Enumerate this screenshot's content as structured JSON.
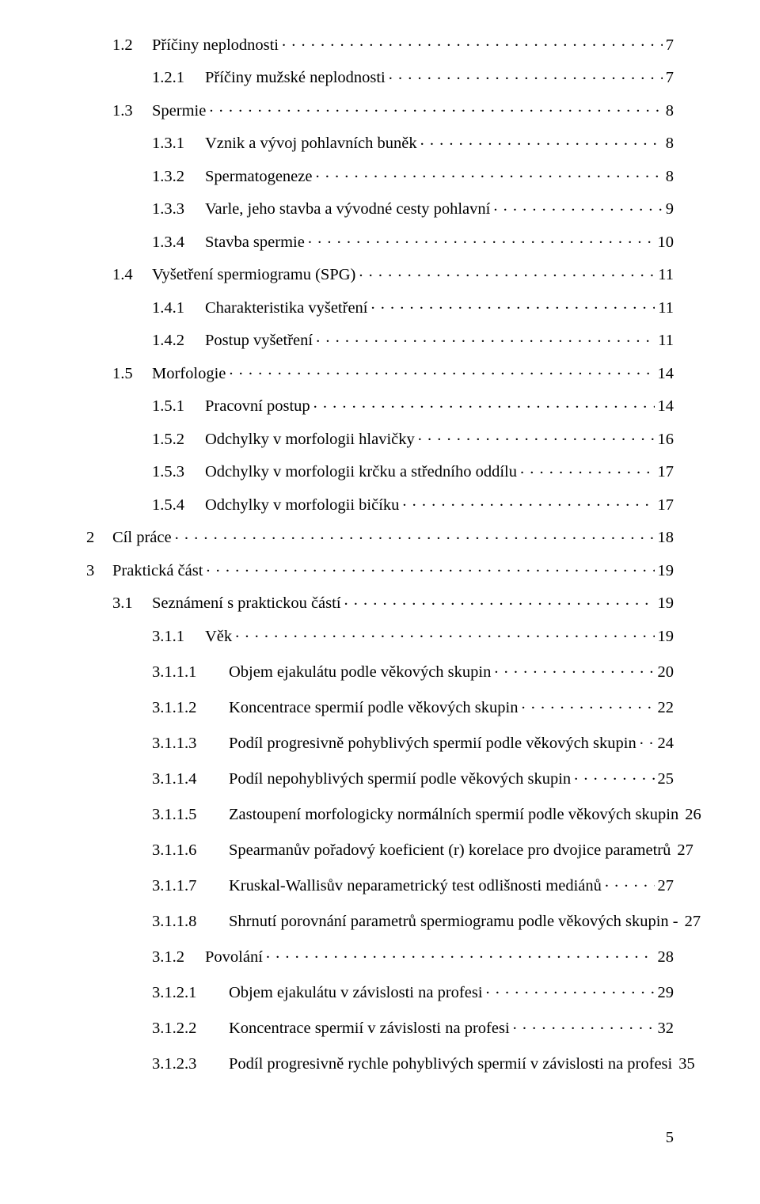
{
  "colors": {
    "background": "#ffffff",
    "text": "#000000"
  },
  "typography": {
    "font_family": "Times New Roman",
    "font_size_pt": 12,
    "line_spacing_pt": 18
  },
  "page_number": "5",
  "toc": [
    {
      "level": 1,
      "num": "1.2",
      "title": "Příčiny neplodnosti",
      "page": "7"
    },
    {
      "level": 2,
      "num": "1.2.1",
      "title": "Příčiny mužské neplodnosti",
      "page": "7"
    },
    {
      "level": 1,
      "num": "1.3",
      "title": "Spermie",
      "page": "8"
    },
    {
      "level": 2,
      "num": "1.3.1",
      "title": "Vznik a vývoj pohlavních buněk",
      "page": "8"
    },
    {
      "level": 2,
      "num": "1.3.2",
      "title": "Spermatogeneze",
      "page": "8"
    },
    {
      "level": 2,
      "num": "1.3.3",
      "title": "Varle, jeho stavba a vývodné cesty pohlavní",
      "page": "9"
    },
    {
      "level": 2,
      "num": "1.3.4",
      "title": "Stavba spermie",
      "page": "10"
    },
    {
      "level": 1,
      "num": "1.4",
      "title": "Vyšetření spermiogramu (SPG)",
      "page": "11"
    },
    {
      "level": 2,
      "num": "1.4.1",
      "title": "Charakteristika vyšetření",
      "page": "11"
    },
    {
      "level": 2,
      "num": "1.4.2",
      "title": "Postup vyšetření",
      "page": "11"
    },
    {
      "level": 1,
      "num": "1.5",
      "title": "Morfologie",
      "page": "14"
    },
    {
      "level": 2,
      "num": "1.5.1",
      "title": "Pracovní postup",
      "page": "14"
    },
    {
      "level": 2,
      "num": "1.5.2",
      "title": "Odchylky v morfologii hlavičky",
      "page": "16"
    },
    {
      "level": 2,
      "num": "1.5.3",
      "title": "Odchylky v morfologii krčku a středního oddílu",
      "page": "17"
    },
    {
      "level": 2,
      "num": "1.5.4",
      "title": "Odchylky v morfologii bičíku",
      "page": "17"
    },
    {
      "level": 0,
      "num": "2",
      "title": "Cíl práce",
      "page": "18"
    },
    {
      "level": 0,
      "num": "3",
      "title": "Praktická část",
      "page": "19"
    },
    {
      "level": 1,
      "num": "3.1",
      "title": "Seznámení s praktickou částí",
      "page": "19"
    },
    {
      "level": 2,
      "num": "3.1.1",
      "title": "Věk",
      "page": "19"
    },
    {
      "level": 3,
      "num": "3.1.1.1",
      "title": "Objem ejakulátu podle věkových skupin",
      "page": "20"
    },
    {
      "level": 3,
      "num": "3.1.1.2",
      "title": "Koncentrace spermií podle věkových skupin",
      "page": "22"
    },
    {
      "level": 3,
      "num": "3.1.1.3",
      "title": "Podíl progresivně pohyblivých spermií podle věkových skupin",
      "page": "24"
    },
    {
      "level": 3,
      "num": "3.1.1.4",
      "title": "Podíl nepohyblivých spermií podle věkových skupin",
      "page": "25"
    },
    {
      "level": 3,
      "num": "3.1.1.5",
      "title": "Zastoupení morfologicky normálních spermií podle věkových skupin",
      "page": "26"
    },
    {
      "level": 3,
      "num": "3.1.1.6",
      "title": "Spearmanův pořadový koeficient (r) korelace pro dvojice parametrů",
      "page": "27"
    },
    {
      "level": 3,
      "num": "3.1.1.7",
      "title": "Kruskal-Wallisův neparametrický test odlišnosti mediánů",
      "page": "27"
    },
    {
      "level": 3,
      "num": "3.1.1.8",
      "title": "Shrnutí porovnání parametrů spermiogramu podle věkových skupin -",
      "page": "27"
    },
    {
      "level": 2,
      "num": "3.1.2",
      "title": "Povolání",
      "page": "28"
    },
    {
      "level": 3,
      "num": "3.1.2.1",
      "title": "Objem ejakulátu v závislosti na profesi",
      "page": "29"
    },
    {
      "level": 3,
      "num": "3.1.2.2",
      "title": "Koncentrace spermií v závislosti na profesi",
      "page": "32"
    },
    {
      "level": 3,
      "num": "3.1.2.3",
      "title": "Podíl progresivně rychle pohyblivých spermií v závislosti na profesi",
      "page": "35"
    }
  ]
}
